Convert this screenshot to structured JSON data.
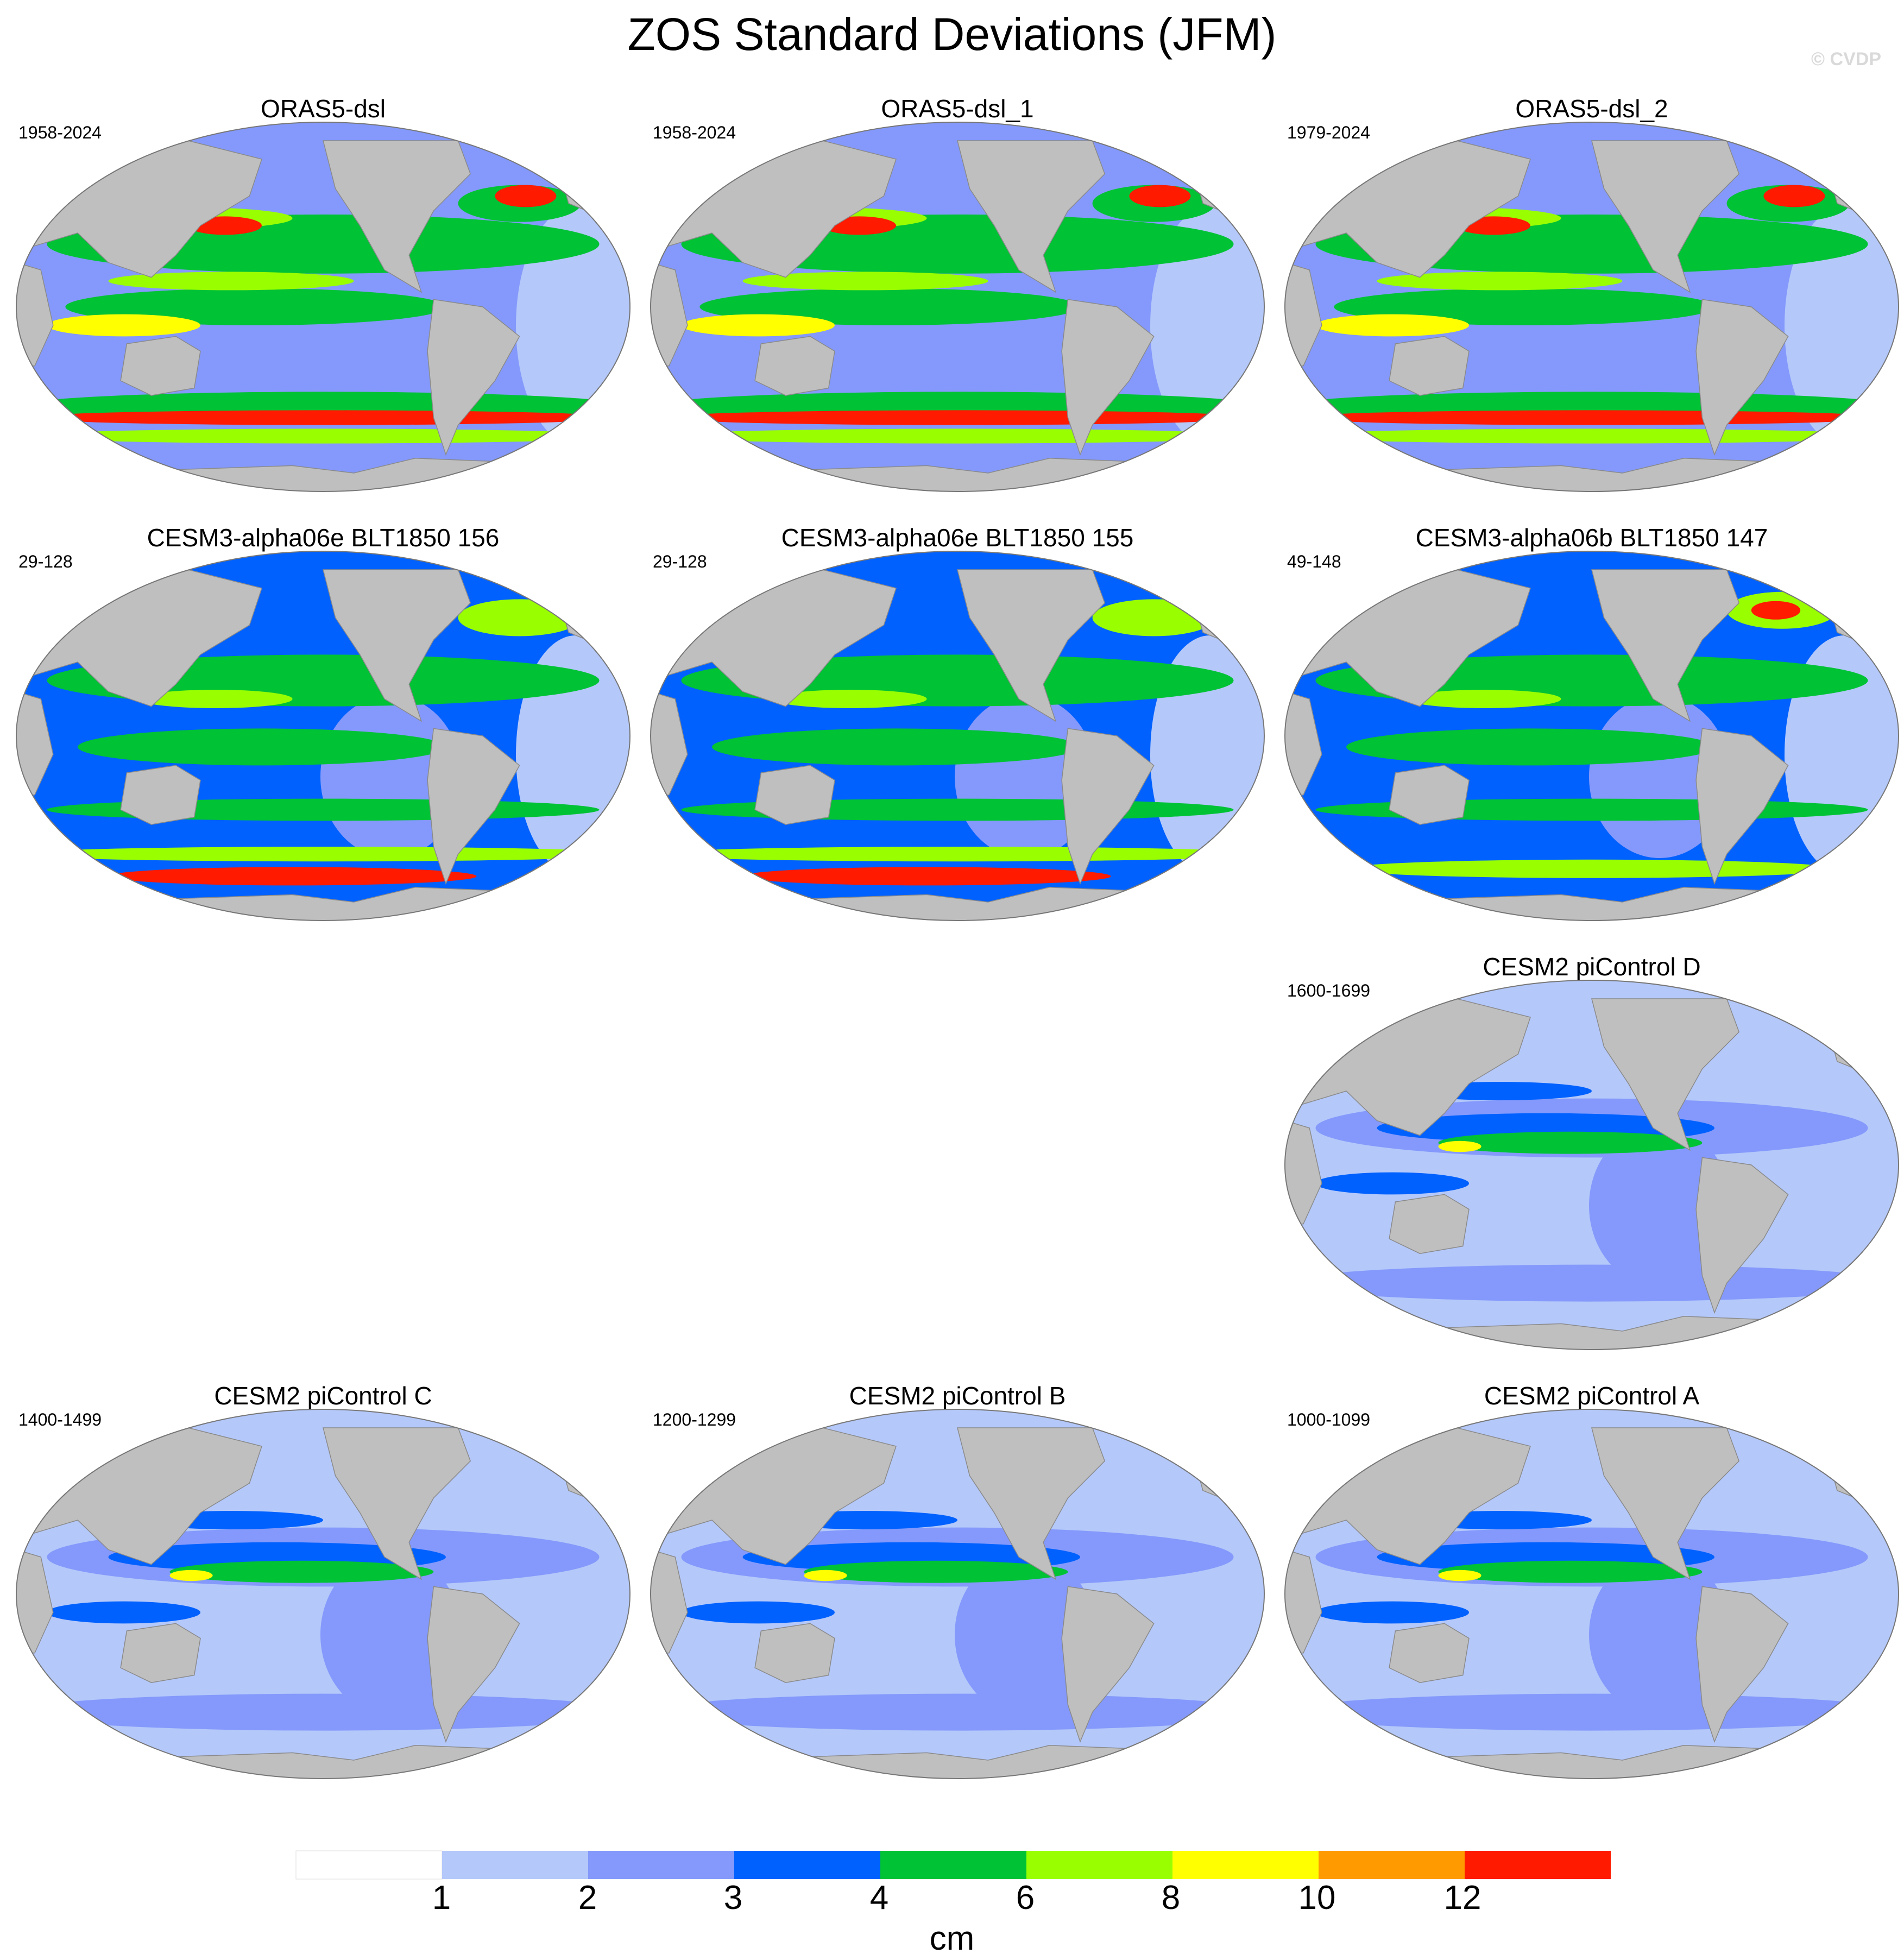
{
  "title": "ZOS Standard Deviations (JFM)",
  "watermark": "© CVDP",
  "colors": {
    "land": "#bfbfbf",
    "scale": [
      "#ffffff",
      "#b4c8fa",
      "#8499fb",
      "#0061ff",
      "#00c235",
      "#99ff00",
      "#ffff00",
      "#ff9a00",
      "#ff1a00"
    ]
  },
  "panels": [
    {
      "title": "ORAS5-dsl",
      "years": "1958-2024",
      "style": "oras"
    },
    {
      "title": "ORAS5-dsl_1",
      "years": "1958-2024",
      "style": "oras"
    },
    {
      "title": "ORAS5-dsl_2",
      "years": "1979-2024",
      "style": "oras"
    },
    {
      "title": "CESM3-alpha06e BLT1850 156",
      "years": "29-128",
      "style": "cesm3"
    },
    {
      "title": "CESM3-alpha06e BLT1850 155",
      "years": "29-128",
      "style": "cesm3"
    },
    {
      "title": "CESM3-alpha06b BLT1850 147",
      "years": "49-148",
      "style": "cesm3b"
    },
    {
      "title": "CESM2 piControl D",
      "years": "1600-1699",
      "style": "cesm2"
    },
    {
      "title": "CESM2 piControl C",
      "years": "1400-1499",
      "style": "cesm2"
    },
    {
      "title": "CESM2 piControl B",
      "years": "1200-1299",
      "style": "cesm2"
    },
    {
      "title": "CESM2 piControl A",
      "years": "1000-1099",
      "style": "cesm2"
    }
  ],
  "colorbar": {
    "labels": [
      "1",
      "2",
      "3",
      "4",
      "6",
      "8",
      "10",
      "12"
    ],
    "unit": "cm"
  }
}
